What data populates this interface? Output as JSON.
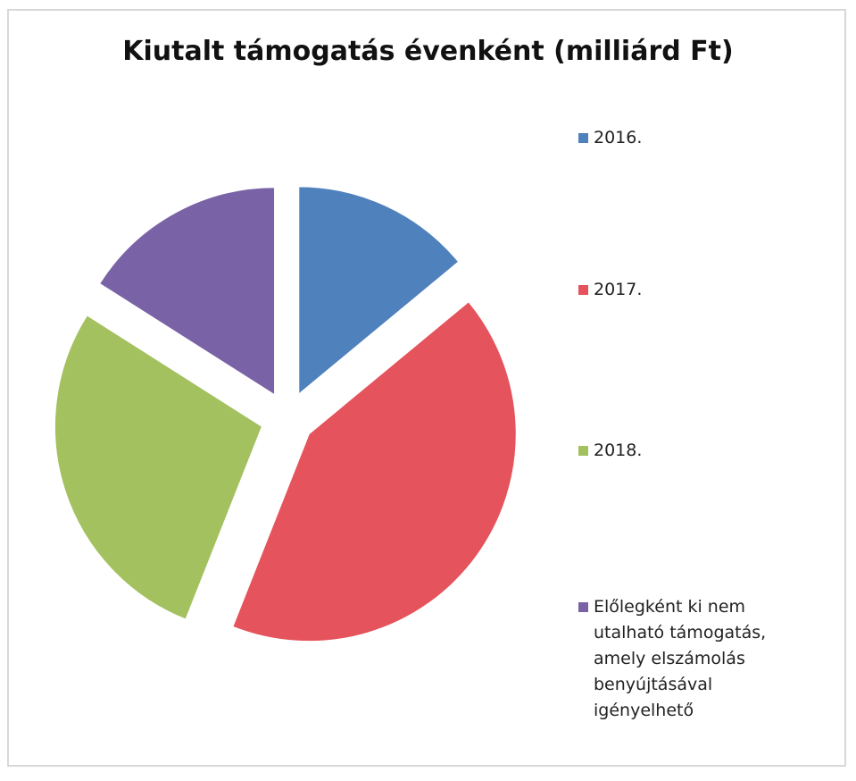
{
  "chart_data": {
    "type": "pie",
    "title": "Kiutalt támogatás évenként (milliárd Ft)",
    "categories": [
      "2016.",
      "2017.",
      "2018.",
      "Előlegként ki nem utalható támogatás, amely elszámolás benyújtásával igényelhető"
    ],
    "values": [
      14,
      42,
      28,
      16
    ],
    "colors": [
      "#4f81bd",
      "#e5535c",
      "#a3c15f",
      "#7a62a6"
    ],
    "legend": "right"
  }
}
